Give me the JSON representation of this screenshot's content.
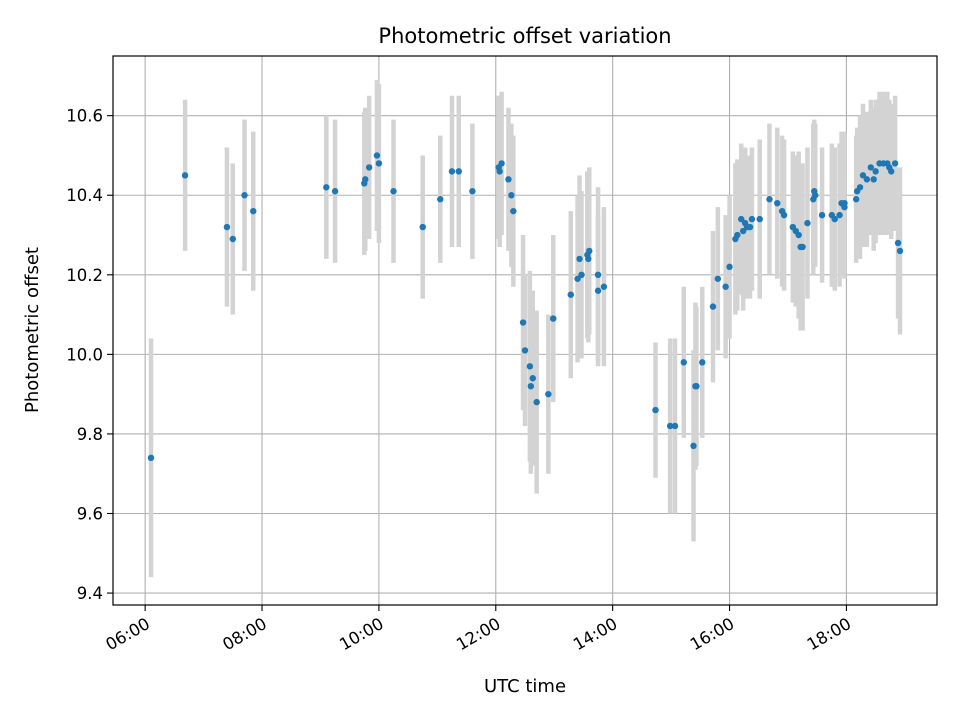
{
  "chart_data": {
    "type": "scatter",
    "title": "Photometric offset variation",
    "xlabel": "UTC time",
    "ylabel": "Photometric offset",
    "x_unit": "hours (UTC)",
    "xlim": [
      "05:27",
      "19:33"
    ],
    "ylim": [
      9.37,
      10.75
    ],
    "x_ticks": [
      "06:00",
      "08:00",
      "10:00",
      "12:00",
      "14:00",
      "16:00",
      "18:00"
    ],
    "y_ticks": [
      "9.4",
      "9.6",
      "9.8",
      "10.0",
      "10.2",
      "10.4",
      "10.6"
    ],
    "grid": true,
    "colors": {
      "point": "#1f77b4",
      "errorbar": "#d3d3d3",
      "grid": "#b0b0b0"
    },
    "series": [
      {
        "x": [
          "06:06",
          "06:41",
          "07:24",
          "07:30",
          "07:42",
          "07:51",
          "09:06",
          "09:15",
          "09:45",
          "09:46",
          "09:50",
          "09:58",
          "10:00",
          "10:15",
          "10:45",
          "11:03",
          "11:15",
          "11:22",
          "11:36",
          "12:03",
          "12:04",
          "12:06",
          "12:13",
          "12:16",
          "12:18",
          "12:28",
          "12:30",
          "12:35",
          "12:36",
          "12:38",
          "12:42",
          "12:54",
          "12:59",
          "13:17",
          "13:24",
          "13:26",
          "13:28",
          "13:34",
          "13:35",
          "13:36",
          "13:45",
          "13:45",
          "13:51",
          "14:44",
          "14:59",
          "15:04",
          "15:13",
          "15:23",
          "15:25",
          "15:26",
          "15:32",
          "15:43",
          "15:48",
          "15:56",
          "16:00",
          "16:06",
          "16:08",
          "16:12",
          "16:14",
          "16:16",
          "16:18",
          "16:21",
          "16:23",
          "16:31",
          "16:41",
          "16:49",
          "16:54",
          "16:56",
          "17:05",
          "17:08",
          "17:11",
          "17:13",
          "17:15",
          "17:20",
          "17:26",
          "17:27",
          "17:28",
          "17:35",
          "17:45",
          "17:48",
          "17:53",
          "17:55",
          "17:58",
          "17:58",
          "18:10",
          "18:11",
          "18:14",
          "18:17",
          "18:21",
          "18:25",
          "18:28",
          "18:30",
          "18:34",
          "18:38",
          "18:42",
          "18:44",
          "18:46",
          "18:50",
          "18:53",
          "18:55"
        ],
        "y": [
          9.74,
          10.45,
          10.32,
          10.29,
          10.4,
          10.36,
          10.42,
          10.41,
          10.43,
          10.44,
          10.47,
          10.5,
          10.48,
          10.41,
          10.32,
          10.39,
          10.46,
          10.46,
          10.41,
          10.47,
          10.46,
          10.48,
          10.44,
          10.4,
          10.36,
          10.08,
          10.01,
          9.97,
          9.92,
          9.94,
          9.88,
          9.9,
          10.09,
          10.15,
          10.19,
          10.24,
          10.2,
          10.25,
          10.24,
          10.26,
          10.2,
          10.16,
          10.17,
          9.86,
          9.82,
          9.82,
          9.98,
          9.77,
          9.92,
          9.92,
          9.98,
          10.12,
          10.19,
          10.17,
          10.22,
          10.29,
          10.3,
          10.34,
          10.31,
          10.33,
          10.32,
          10.32,
          10.34,
          10.34,
          10.39,
          10.38,
          10.36,
          10.35,
          10.32,
          10.31,
          10.3,
          10.27,
          10.27,
          10.33,
          10.39,
          10.41,
          10.4,
          10.35,
          10.35,
          10.34,
          10.35,
          10.38,
          10.37,
          10.38,
          10.39,
          10.41,
          10.42,
          10.45,
          10.44,
          10.47,
          10.44,
          10.46,
          10.48,
          10.48,
          10.48,
          10.47,
          10.46,
          10.48,
          10.28,
          10.26
        ],
        "err": [
          0.3,
          0.19,
          0.2,
          0.19,
          0.19,
          0.2,
          0.18,
          0.18,
          0.18,
          0.18,
          0.18,
          0.19,
          0.2,
          0.18,
          0.18,
          0.16,
          0.19,
          0.19,
          0.17,
          0.18,
          0.19,
          0.18,
          0.18,
          0.18,
          0.19,
          0.22,
          0.19,
          0.24,
          0.22,
          0.22,
          0.23,
          0.2,
          0.21,
          0.21,
          0.21,
          0.21,
          0.21,
          0.21,
          0.21,
          0.21,
          0.22,
          0.19,
          0.2,
          0.17,
          0.22,
          0.22,
          0.19,
          0.24,
          0.21,
          0.2,
          0.19,
          0.19,
          0.18,
          0.18,
          0.18,
          0.19,
          0.19,
          0.19,
          0.2,
          0.19,
          0.18,
          0.18,
          0.18,
          0.2,
          0.19,
          0.19,
          0.19,
          0.19,
          0.19,
          0.19,
          0.21,
          0.21,
          0.21,
          0.19,
          0.19,
          0.18,
          0.18,
          0.17,
          0.18,
          0.18,
          0.18,
          0.18,
          0.18,
          0.18,
          0.16,
          0.16,
          0.18,
          0.18,
          0.17,
          0.17,
          0.18,
          0.18,
          0.18,
          0.18,
          0.18,
          0.17,
          0.17,
          0.17,
          0.19,
          0.21
        ]
      }
    ]
  }
}
